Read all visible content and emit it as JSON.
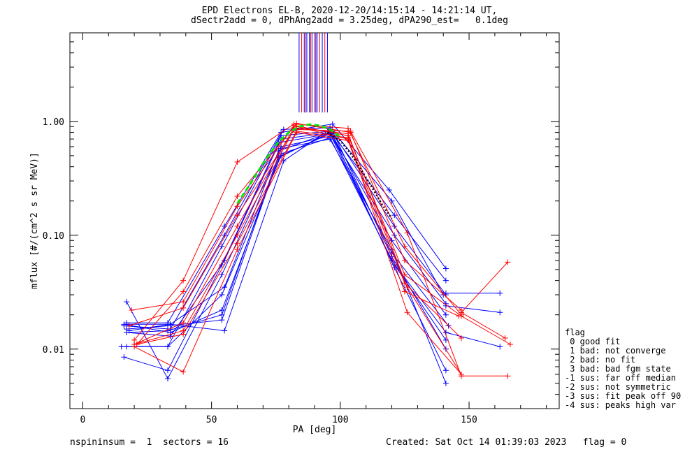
{
  "title": "EPD Electrons EL-B, 2020-12-20/14:15:14 - 14:21:14 UT,",
  "subtitle": "dSectr2add = 0, dPhAng2add = 3.25deg, dPA290_est=   0.1deg",
  "footer_left": "nspininsum =  1  sectors = 16",
  "footer_right": "Created: Sat Oct 14 01:39:03 2023   flag = 0",
  "legend": {
    "title": "flag",
    "items": [
      " 0 good fit",
      " 1 bad: not converge",
      " 2 bad: no fit",
      " 3 bad: bad fgm state",
      "-1 sus: far off median",
      "-2 sus: not symmetric",
      "-3 sus: fit peak off 90",
      "-4 sus: peaks high var"
    ]
  },
  "chart_data": {
    "type": "line",
    "xlabel": "PA [deg]",
    "ylabel": "mflux [#/(cm^2 s sr MeV)]",
    "xlim": [
      -5,
      185
    ],
    "ylim": [
      0.003,
      6
    ],
    "yscale": "log",
    "xticks": [
      0,
      50,
      100,
      150
    ],
    "yticks": [
      0.01,
      0.1,
      1.0
    ],
    "ytick_labels": [
      "0.01",
      "0.10",
      "1.00"
    ],
    "colors": {
      "blue": "#0000ff",
      "red": "#ff0000",
      "fit": "#00e600",
      "fit2": "#000000"
    },
    "series": [
      {
        "color": "blue",
        "x": [
          17,
          33,
          55,
          77,
          97,
          119,
          141
        ],
        "y": [
          0.017,
          0.017,
          0.12,
          0.8,
          0.95,
          0.25,
          0.051
        ]
      },
      {
        "color": "blue",
        "x": [
          16,
          34,
          55,
          78,
          96,
          120,
          140
        ],
        "y": [
          0.016,
          0.015,
          0.1,
          0.85,
          0.88,
          0.2,
          0.03
        ]
      },
      {
        "color": "blue",
        "x": [
          15,
          33,
          54,
          77,
          96,
          121,
          141
        ],
        "y": [
          0.0105,
          0.0105,
          0.08,
          0.75,
          0.82,
          0.15,
          0.04
        ]
      },
      {
        "color": "blue",
        "x": [
          17,
          34,
          55,
          77,
          97,
          121,
          141
        ],
        "y": [
          0.014,
          0.013,
          0.06,
          0.7,
          0.8,
          0.12,
          0.03
        ]
      },
      {
        "color": "blue",
        "x": [
          16,
          33,
          54,
          76,
          96,
          121,
          141
        ],
        "y": [
          0.0085,
          0.0065,
          0.055,
          0.65,
          0.78,
          0.1,
          0.025
        ]
      },
      {
        "color": "blue",
        "x": [
          17,
          33,
          54,
          77,
          97,
          120,
          141
        ],
        "y": [
          0.026,
          0.0055,
          0.045,
          0.6,
          0.75,
          0.09,
          0.02
        ]
      },
      {
        "color": "blue",
        "x": [
          18,
          34,
          55,
          76,
          96,
          120,
          142
        ],
        "y": [
          0.0145,
          0.0165,
          0.035,
          0.55,
          0.8,
          0.07,
          0.016
        ]
      },
      {
        "color": "blue",
        "x": [
          17,
          33,
          54,
          77,
          96,
          120,
          141
        ],
        "y": [
          0.0105,
          0.0105,
          0.03,
          0.5,
          0.78,
          0.06,
          0.014
        ]
      },
      {
        "color": "blue",
        "x": [
          16,
          34,
          54,
          77,
          96,
          121,
          141
        ],
        "y": [
          0.0165,
          0.014,
          0.022,
          0.52,
          0.72,
          0.055,
          0.012
        ]
      },
      {
        "color": "blue",
        "x": [
          17,
          33,
          54,
          76,
          97,
          120,
          141
        ],
        "y": [
          0.015,
          0.016,
          0.018,
          0.48,
          0.82,
          0.065,
          0.01
        ]
      },
      {
        "color": "blue",
        "x": [
          17,
          34,
          55,
          78,
          96,
          121,
          141
        ],
        "y": [
          0.0165,
          0.0165,
          0.0145,
          0.45,
          0.85,
          0.052,
          0.0065
        ]
      },
      {
        "color": "blue",
        "x": [
          17,
          33,
          54,
          77,
          96,
          120,
          141
        ],
        "y": [
          0.014,
          0.0145,
          0.02,
          0.58,
          0.7,
          0.075,
          0.005
        ]
      },
      {
        "color": "blue",
        "x": [
          141,
          162
        ],
        "y": [
          0.031,
          0.031
        ]
      },
      {
        "color": "blue",
        "x": [
          141,
          162
        ],
        "y": [
          0.024,
          0.021
        ]
      },
      {
        "color": "blue",
        "x": [
          141,
          162
        ],
        "y": [
          0.014,
          0.0105
        ]
      },
      {
        "color": "red",
        "x": [
          20,
          39,
          60,
          82,
          103,
          125,
          147
        ],
        "y": [
          0.012,
          0.04,
          0.44,
          0.95,
          0.87,
          0.08,
          0.02
        ]
      },
      {
        "color": "red",
        "x": [
          21,
          39,
          60,
          83,
          104,
          125,
          147
        ],
        "y": [
          0.011,
          0.032,
          0.22,
          0.96,
          0.8,
          0.06,
          0.022
        ]
      },
      {
        "color": "red",
        "x": [
          19,
          39,
          60,
          82,
          103,
          125,
          147
        ],
        "y": [
          0.022,
          0.026,
          0.18,
          0.92,
          0.75,
          0.045,
          0.0195
        ]
      },
      {
        "color": "red",
        "x": [
          18,
          39,
          60,
          83,
          103,
          125,
          147
        ],
        "y": [
          0.016,
          0.023,
          0.15,
          0.9,
          0.7,
          0.038,
          0.0125
        ]
      },
      {
        "color": "red",
        "x": [
          20,
          39,
          60,
          82,
          103,
          126,
          147
        ],
        "y": [
          0.011,
          0.017,
          0.12,
          0.88,
          0.78,
          0.035,
          0.006
        ]
      },
      {
        "color": "red",
        "x": [
          20,
          39,
          60,
          82,
          104,
          126,
          147
        ],
        "y": [
          0.011,
          0.0145,
          0.1,
          0.85,
          0.82,
          0.105,
          0.0058
        ]
      },
      {
        "color": "red",
        "x": [
          21,
          39,
          60,
          83,
          103,
          126,
          147
        ],
        "y": [
          0.011,
          0.0135,
          0.085,
          0.82,
          0.72,
          0.021,
          0.006
        ]
      },
      {
        "color": "red",
        "x": [
          20,
          39,
          60,
          83,
          103,
          125,
          146
        ],
        "y": [
          0.0105,
          0.0063,
          0.075,
          0.8,
          0.68,
          0.032,
          0.0195
        ]
      },
      {
        "color": "red",
        "x": [
          147,
          165
        ],
        "y": [
          0.021,
          0.058
        ]
      },
      {
        "color": "red",
        "x": [
          147,
          166
        ],
        "y": [
          0.0195,
          0.011
        ]
      },
      {
        "color": "red",
        "x": [
          147,
          165
        ],
        "y": [
          0.0058,
          0.0058
        ]
      },
      {
        "color": "red",
        "x": [
          147,
          164
        ],
        "y": [
          0.021,
          0.0125
        ]
      }
    ],
    "vlines": {
      "x": [
        84,
        85,
        86,
        86.5,
        87,
        88,
        88.5,
        89,
        90,
        90.5,
        91,
        92,
        93,
        94,
        95
      ],
      "y_from": 1.2,
      "colors": [
        "blue",
        "red",
        "blue",
        "red",
        "blue",
        "blue",
        "red",
        "blue",
        "red",
        "blue",
        "blue",
        "red",
        "blue",
        "red",
        "blue"
      ]
    },
    "fit": {
      "green": {
        "x": [
          60,
          64,
          68,
          72,
          76,
          80,
          84,
          88,
          92,
          96,
          100
        ],
        "y": [
          0.19,
          0.26,
          0.36,
          0.5,
          0.66,
          0.8,
          0.9,
          0.94,
          0.92,
          0.85,
          0.73
        ]
      },
      "black": {
        "x": [
          95,
          100,
          104,
          108,
          112,
          116,
          120
        ],
        "y": [
          0.8,
          0.68,
          0.52,
          0.38,
          0.27,
          0.19,
          0.14
        ]
      }
    }
  }
}
